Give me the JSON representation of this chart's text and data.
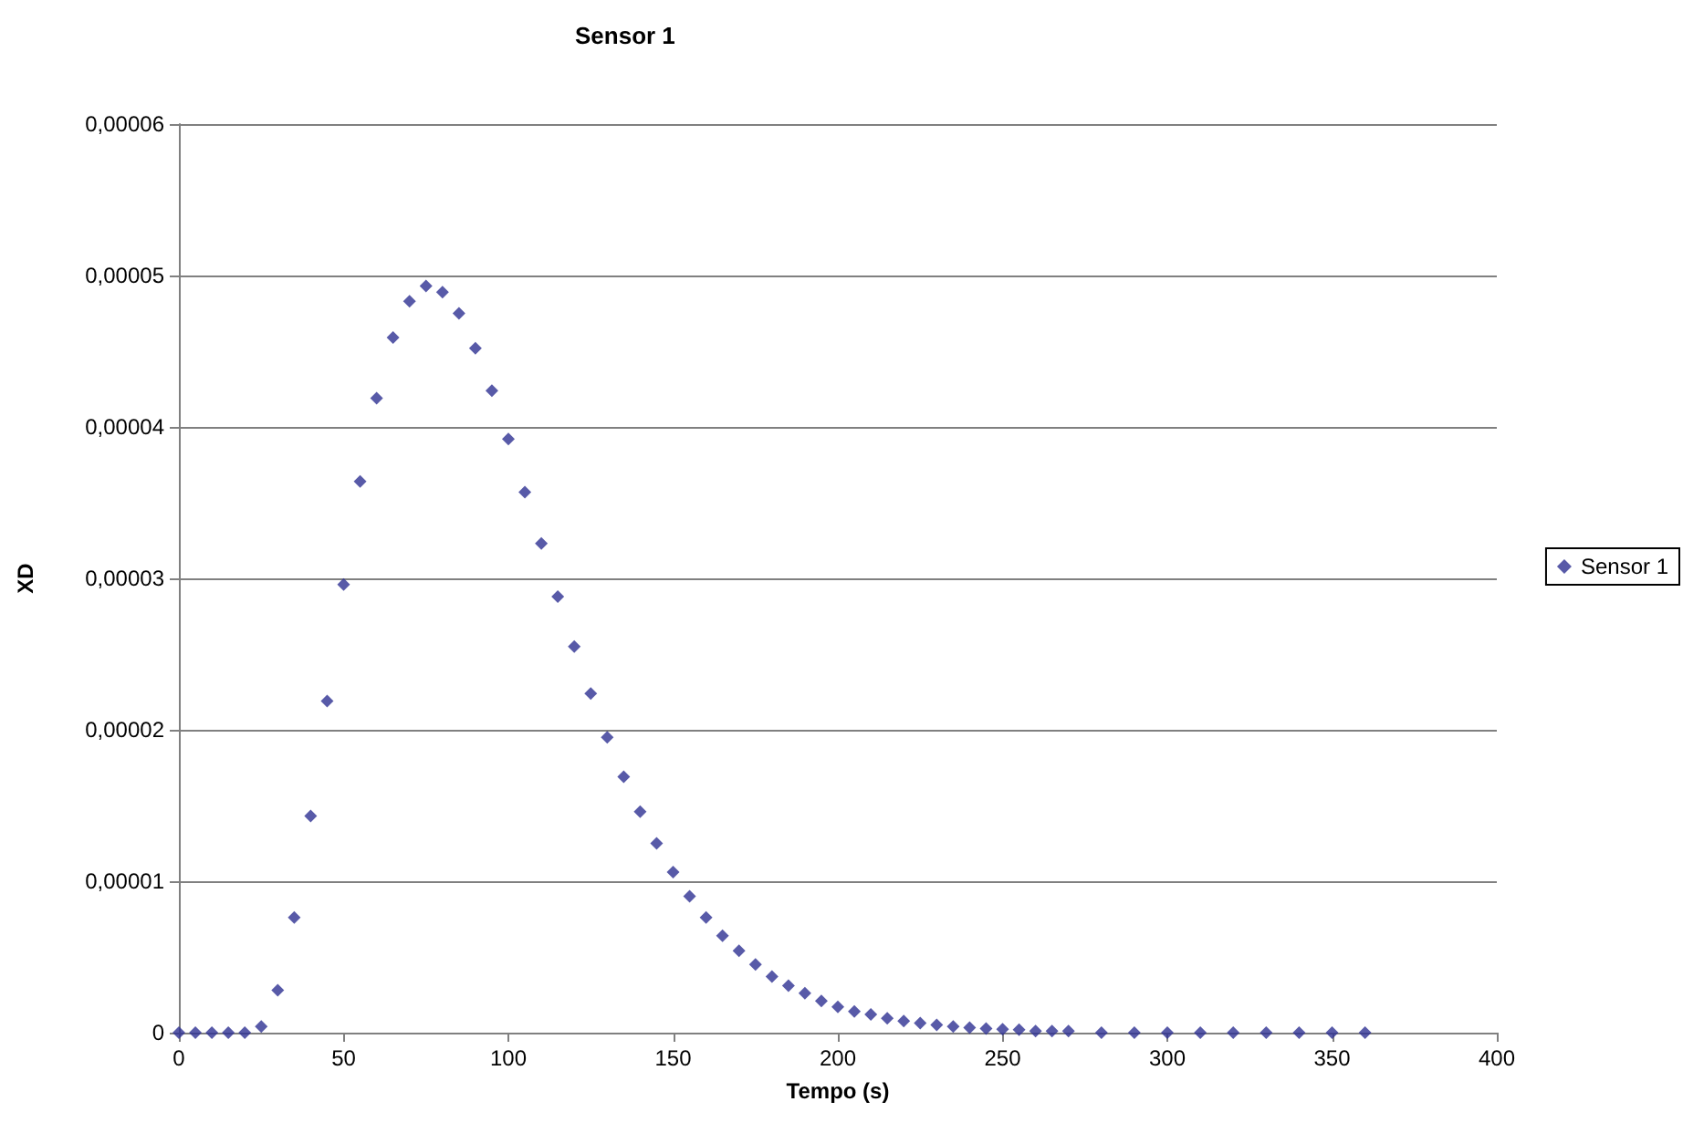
{
  "chart_data": {
    "type": "scatter",
    "title": "Sensor 1",
    "xlabel": "Tempo (s)",
    "ylabel": "XD",
    "x": [
      0,
      5,
      10,
      15,
      20,
      25,
      30,
      35,
      40,
      45,
      50,
      55,
      60,
      65,
      70,
      75,
      80,
      85,
      90,
      95,
      100,
      105,
      110,
      115,
      120,
      125,
      130,
      135,
      140,
      145,
      150,
      155,
      160,
      165,
      170,
      175,
      180,
      185,
      190,
      195,
      200,
      205,
      210,
      215,
      220,
      225,
      230,
      235,
      240,
      245,
      250,
      255,
      260,
      265,
      270,
      280,
      290,
      300,
      310,
      320,
      330,
      340,
      350,
      360
    ],
    "series": [
      {
        "name": "Sensor 1",
        "color": "#2e3192",
        "values": [
          0,
          0,
          0,
          0,
          0,
          4e-07,
          2.8e-06,
          7.6e-06,
          1.43e-05,
          2.19e-05,
          2.96e-05,
          3.64e-05,
          4.19e-05,
          4.59e-05,
          4.83e-05,
          4.93e-05,
          4.89e-05,
          4.75e-05,
          4.52e-05,
          4.24e-05,
          3.92e-05,
          3.57e-05,
          3.23e-05,
          2.88e-05,
          2.55e-05,
          2.24e-05,
          1.95e-05,
          1.69e-05,
          1.46e-05,
          1.25e-05,
          1.06e-05,
          9e-06,
          7.6e-06,
          6.4e-06,
          5.4e-06,
          4.5e-06,
          3.7e-06,
          3.1e-06,
          2.6e-06,
          2.1e-06,
          1.7e-06,
          1.4e-06,
          1.2e-06,
          9.5e-07,
          7.7e-07,
          6.3e-07,
          5.1e-07,
          4.1e-07,
          3.3e-07,
          2.7e-07,
          2.2e-07,
          2e-07,
          1e-07,
          1e-07,
          1e-07,
          0,
          0,
          0,
          0,
          0,
          0,
          0,
          0,
          0
        ]
      }
    ],
    "xlim": [
      0,
      400
    ],
    "xticks": [
      0,
      50,
      100,
      150,
      200,
      250,
      300,
      350,
      400
    ],
    "ylim": [
      0,
      6e-05
    ],
    "yticks": [
      {
        "value": 0,
        "label": "0"
      },
      {
        "value": 1e-05,
        "label": "0,00001"
      },
      {
        "value": 2e-05,
        "label": "0,00002"
      },
      {
        "value": 3e-05,
        "label": "0,00003"
      },
      {
        "value": 4e-05,
        "label": "0,00004"
      },
      {
        "value": 5e-05,
        "label": "0,00005"
      },
      {
        "value": 6e-05,
        "label": "0,00006"
      }
    ],
    "grid": "y",
    "legend": "right",
    "marker": "diamond"
  }
}
